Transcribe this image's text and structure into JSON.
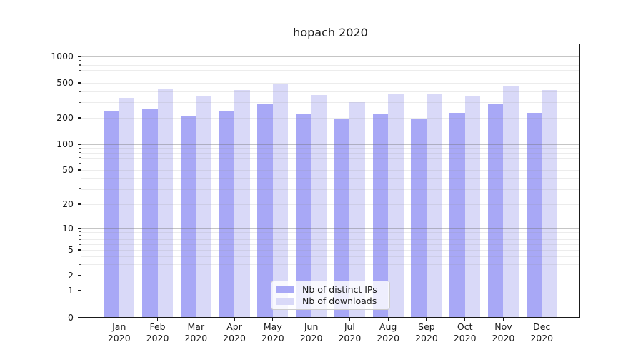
{
  "title": "hopach 2020",
  "chart_data": {
    "type": "bar",
    "title": "hopach 2020",
    "categories": [
      "Jan",
      "Feb",
      "Mar",
      "Apr",
      "May",
      "Jun",
      "Jul",
      "Aug",
      "Sep",
      "Oct",
      "Nov",
      "Dec"
    ],
    "category_year": "2020",
    "series": [
      {
        "name": "Nb of distinct IPs",
        "color": "#a8a8f6",
        "values": [
          235,
          252,
          212,
          238,
          289,
          224,
          193,
          221,
          196,
          228,
          288,
          228
        ]
      },
      {
        "name": "Nb of downloads",
        "color": "#d9d9f8",
        "values": [
          338,
          430,
          355,
          412,
          487,
          363,
          304,
          368,
          371,
          356,
          458,
          411
        ]
      }
    ],
    "xlabel": "",
    "ylabel": "",
    "y_axis": {
      "scale": "log-style with 0 baseline",
      "tick_values": [
        0,
        1,
        2,
        5,
        10,
        20,
        50,
        100,
        200,
        500,
        1000
      ],
      "minor_values": [
        3,
        4,
        6,
        7,
        8,
        9,
        30,
        40,
        60,
        70,
        80,
        90,
        300,
        400,
        600,
        700,
        800,
        900
      ],
      "ylim": [
        0,
        1400
      ]
    },
    "grid": "horizontal major and minor, drawn over bars",
    "legend": {
      "position": "lower center",
      "entries": [
        "Nb of distinct IPs",
        "Nb of downloads"
      ]
    },
    "colors": {
      "distinct_ips": "#a8a8f6",
      "downloads": "#d9d9f8",
      "major_grid": "#c4c4c4",
      "minor_grid": "#e5e5e5",
      "axis": "#1a1a1a",
      "background": "#ffffff"
    }
  }
}
